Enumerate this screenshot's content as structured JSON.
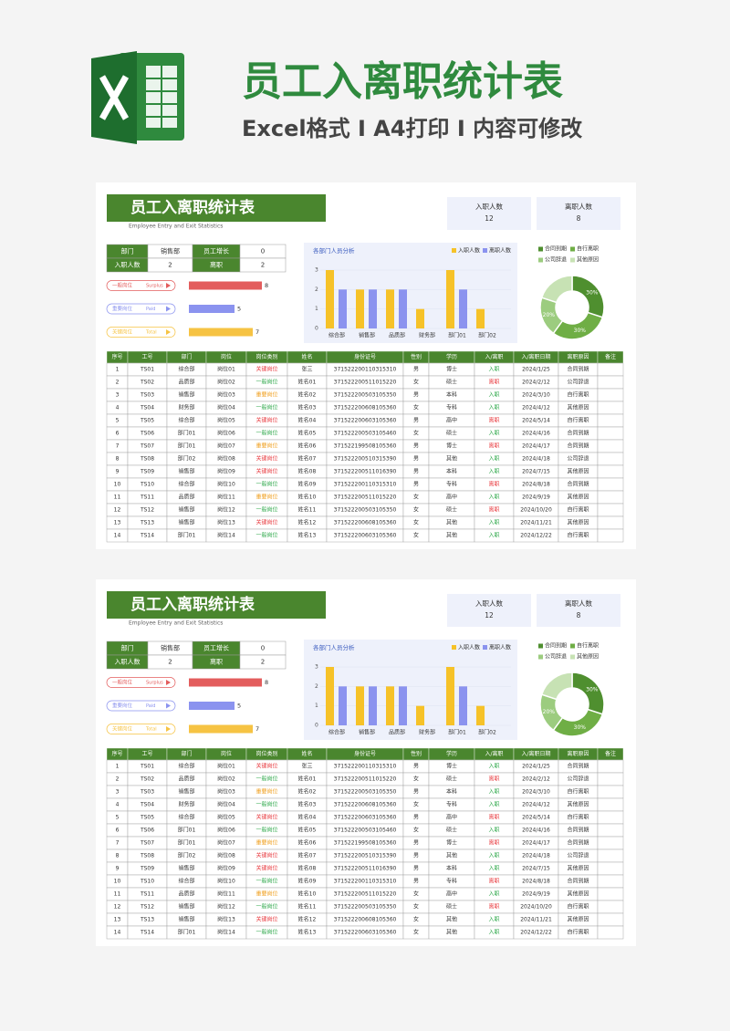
{
  "header": {
    "title": "员工入离职统计表",
    "subtitle": "Excel格式 Ⅰ A4打印 Ⅰ 内容可修改"
  },
  "status_colors": {
    "关键岗位": "#e8383d",
    "一般岗位": "#2ea84a",
    "重要岗位": "#f0a020",
    "入职": "#2ea84a",
    "离职": "#e8383d"
  },
  "sheets": [
    {
      "title": "员工入离职统计表",
      "subtitle": "Employee Entry and Exit Statistics",
      "kpis": [
        {
          "label": "入职人数",
          "value": 12
        },
        {
          "label": "离职人数",
          "value": 8
        }
      ],
      "summary": [
        [
          "部门",
          "销售部",
          "员工增长",
          0
        ],
        [
          "入职人数",
          2,
          "离职",
          2
        ]
      ],
      "post_chart": {
        "type": "bar",
        "orientation": "horizontal",
        "items": [
          {
            "label": "一般岗位",
            "tag": "Surplus",
            "value": 8,
            "color": "#e35d5d"
          },
          {
            "label": "重要岗位",
            "tag": "Paid",
            "value": 5,
            "color": "#8b93ef"
          },
          {
            "label": "关键岗位",
            "tag": "Total",
            "value": 7,
            "color": "#f6c343"
          }
        ]
      },
      "bar_chart": {
        "type": "bar",
        "title": "各部门人员分析",
        "categories": [
          "综合部",
          "销售部",
          "品质部",
          "财务部",
          "部门01",
          "部门02"
        ],
        "series": [
          {
            "name": "入职人数",
            "color": "#f6c228",
            "values": [
              3,
              2,
              2,
              1,
              3,
              1
            ]
          },
          {
            "name": "离职人数",
            "color": "#8b93ef",
            "values": [
              2,
              2,
              2,
              0,
              2,
              0
            ]
          }
        ],
        "ylim": [
          0,
          3
        ],
        "yticks": [
          0,
          1,
          2,
          3
        ],
        "legend": "top-right"
      },
      "donut": {
        "type": "donut",
        "categories": [
          "合同到期",
          "自行离职",
          "公司辞退",
          "其他原因"
        ],
        "values": [
          30,
          30,
          20,
          20
        ],
        "value_labels": [
          "30%",
          "30%",
          "20%",
          null
        ],
        "colors": [
          "#4f8f2f",
          "#6fae45",
          "#9ccc7f",
          "#c7e2b4"
        ]
      },
      "table": {
        "headers": [
          "序号",
          "工号",
          "部门",
          "岗位",
          "岗位类别",
          "姓名",
          "身份证号",
          "性别",
          "学历",
          "入/离职",
          "入/离职日期",
          "离职原因",
          "备注"
        ],
        "rows": [
          [
            1,
            "TS01",
            "综合部",
            "岗位01",
            "关键岗位",
            "张三",
            "371522200110315310",
            "男",
            "博士",
            "入职",
            "2024/1/25",
            "合同到期"
          ],
          [
            2,
            "TS02",
            "品质部",
            "岗位02",
            "一般岗位",
            "姓名01",
            "371522200511015220",
            "女",
            "硕士",
            "离职",
            "2024/2/12",
            "公司辞退"
          ],
          [
            3,
            "TS03",
            "销售部",
            "岗位03",
            "重要岗位",
            "姓名02",
            "371522200503105350",
            "男",
            "本科",
            "入职",
            "2024/3/10",
            "自行离职"
          ],
          [
            4,
            "TS04",
            "财务部",
            "岗位04",
            "一般岗位",
            "姓名03",
            "371522200608105360",
            "女",
            "专科",
            "入职",
            "2024/4/12",
            "其他原因"
          ],
          [
            5,
            "TS05",
            "综合部",
            "岗位05",
            "关键岗位",
            "姓名04",
            "371522200603105360",
            "男",
            "高中",
            "离职",
            "2024/5/14",
            "自行离职"
          ],
          [
            6,
            "TS06",
            "部门01",
            "岗位06",
            "一般岗位",
            "姓名05",
            "371522200503105460",
            "女",
            "硕士",
            "入职",
            "2024/4/16",
            "合同到期"
          ],
          [
            7,
            "TS07",
            "部门01",
            "岗位07",
            "重要岗位",
            "姓名06",
            "371522199508105360",
            "男",
            "博士",
            "离职",
            "2024/4/17",
            "合同到期"
          ],
          [
            8,
            "TS08",
            "部门02",
            "岗位08",
            "关键岗位",
            "姓名07",
            "371522200510315390",
            "男",
            "其他",
            "入职",
            "2024/4/18",
            "公司辞退"
          ],
          [
            9,
            "TS09",
            "销售部",
            "岗位09",
            "关键岗位",
            "姓名08",
            "371522200511016390",
            "男",
            "本科",
            "入职",
            "2024/7/15",
            "其他原因"
          ],
          [
            10,
            "TS10",
            "综合部",
            "岗位10",
            "一般岗位",
            "姓名09",
            "371522200110315310",
            "男",
            "专科",
            "离职",
            "2024/8/18",
            "合同到期"
          ],
          [
            11,
            "TS11",
            "品质部",
            "岗位11",
            "重要岗位",
            "姓名10",
            "371522200511015220",
            "女",
            "高中",
            "入职",
            "2024/9/19",
            "其他原因"
          ],
          [
            12,
            "TS12",
            "销售部",
            "岗位12",
            "一般岗位",
            "姓名11",
            "371522200503105350",
            "女",
            "硕士",
            "离职",
            "2024/10/20",
            "自行离职"
          ],
          [
            13,
            "TS13",
            "销售部",
            "岗位13",
            "关键岗位",
            "姓名12",
            "371522200608105360",
            "女",
            "其他",
            "入职",
            "2024/11/21",
            "其他原因"
          ],
          [
            14,
            "TS14",
            "部门01",
            "岗位14",
            "一般岗位",
            "姓名13",
            "371522200603105360",
            "女",
            "其他",
            "入职",
            "2024/12/22",
            "自行离职"
          ]
        ]
      }
    },
    {
      "title": "员工入离职统计表",
      "subtitle": "Employee Entry and Exit Statistics",
      "kpis": [
        {
          "label": "入职人数",
          "value": 12
        },
        {
          "label": "离职人数",
          "value": 8
        }
      ],
      "summary": [
        [
          "部门",
          "销售部",
          "员工增长",
          0
        ],
        [
          "入职人数",
          2,
          "离职",
          2
        ]
      ],
      "post_chart": {
        "type": "bar",
        "orientation": "horizontal",
        "items": [
          {
            "label": "一般岗位",
            "tag": "Surplus",
            "value": 8,
            "color": "#e35d5d"
          },
          {
            "label": "重要岗位",
            "tag": "Paid",
            "value": 5,
            "color": "#8b93ef"
          },
          {
            "label": "关键岗位",
            "tag": "Total",
            "value": 7,
            "color": "#f6c343"
          }
        ]
      },
      "bar_chart": {
        "type": "bar",
        "title": "各部门人员分析",
        "categories": [
          "综合部",
          "销售部",
          "品质部",
          "财务部",
          "部门01",
          "部门02"
        ],
        "series": [
          {
            "name": "入职人数",
            "color": "#f6c228",
            "values": [
              3,
              2,
              2,
              1,
              3,
              1
            ]
          },
          {
            "name": "离职人数",
            "color": "#8b93ef",
            "values": [
              2,
              2,
              2,
              0,
              2,
              0
            ]
          }
        ],
        "ylim": [
          0,
          3
        ],
        "yticks": [
          0,
          1,
          2,
          3
        ],
        "legend": "top-right"
      },
      "donut": {
        "type": "donut",
        "categories": [
          "合同到期",
          "自行离职",
          "公司辞退",
          "其他原因"
        ],
        "values": [
          30,
          30,
          20,
          20
        ],
        "value_labels": [
          "30%",
          "30%",
          "20%",
          null
        ],
        "colors": [
          "#4f8f2f",
          "#6fae45",
          "#9ccc7f",
          "#c7e2b4"
        ]
      },
      "table": {
        "headers": [
          "序号",
          "工号",
          "部门",
          "岗位",
          "岗位类别",
          "姓名",
          "身份证号",
          "性别",
          "学历",
          "入/离职",
          "入/离职日期",
          "离职原因",
          "备注"
        ],
        "rows": [
          [
            1,
            "TS01",
            "综合部",
            "岗位01",
            "关键岗位",
            "张三",
            "371522200110315310",
            "男",
            "博士",
            "入职",
            "2024/1/25",
            "合同到期"
          ],
          [
            2,
            "TS02",
            "品质部",
            "岗位02",
            "一般岗位",
            "姓名01",
            "371522200511015220",
            "女",
            "硕士",
            "离职",
            "2024/2/12",
            "公司辞退"
          ],
          [
            3,
            "TS03",
            "销售部",
            "岗位03",
            "重要岗位",
            "姓名02",
            "371522200503105350",
            "男",
            "本科",
            "入职",
            "2024/3/10",
            "自行离职"
          ],
          [
            4,
            "TS04",
            "财务部",
            "岗位04",
            "一般岗位",
            "姓名03",
            "371522200608105360",
            "女",
            "专科",
            "入职",
            "2024/4/12",
            "其他原因"
          ],
          [
            5,
            "TS05",
            "综合部",
            "岗位05",
            "关键岗位",
            "姓名04",
            "371522200603105360",
            "男",
            "高中",
            "离职",
            "2024/5/14",
            "自行离职"
          ],
          [
            6,
            "TS06",
            "部门01",
            "岗位06",
            "一般岗位",
            "姓名05",
            "371522200503105460",
            "女",
            "硕士",
            "入职",
            "2024/4/16",
            "合同到期"
          ],
          [
            7,
            "TS07",
            "部门01",
            "岗位07",
            "重要岗位",
            "姓名06",
            "371522199508105360",
            "男",
            "博士",
            "离职",
            "2024/4/17",
            "合同到期"
          ],
          [
            8,
            "TS08",
            "部门02",
            "岗位08",
            "关键岗位",
            "姓名07",
            "371522200510315390",
            "男",
            "其他",
            "入职",
            "2024/4/18",
            "公司辞退"
          ],
          [
            9,
            "TS09",
            "销售部",
            "岗位09",
            "关键岗位",
            "姓名08",
            "371522200511016390",
            "男",
            "本科",
            "入职",
            "2024/7/15",
            "其他原因"
          ],
          [
            10,
            "TS10",
            "综合部",
            "岗位10",
            "一般岗位",
            "姓名09",
            "371522200110315310",
            "男",
            "专科",
            "离职",
            "2024/8/18",
            "合同到期"
          ],
          [
            11,
            "TS11",
            "品质部",
            "岗位11",
            "重要岗位",
            "姓名10",
            "371522200511015220",
            "女",
            "高中",
            "入职",
            "2024/9/19",
            "其他原因"
          ],
          [
            12,
            "TS12",
            "销售部",
            "岗位12",
            "一般岗位",
            "姓名11",
            "371522200503105350",
            "女",
            "硕士",
            "离职",
            "2024/10/20",
            "自行离职"
          ],
          [
            13,
            "TS13",
            "销售部",
            "岗位13",
            "关键岗位",
            "姓名12",
            "371522200608105360",
            "女",
            "其他",
            "入职",
            "2024/11/21",
            "其他原因"
          ],
          [
            14,
            "TS14",
            "部门01",
            "岗位14",
            "一般岗位",
            "姓名13",
            "371522200603105360",
            "女",
            "其他",
            "入职",
            "2024/12/22",
            "自行离职"
          ]
        ]
      }
    }
  ]
}
